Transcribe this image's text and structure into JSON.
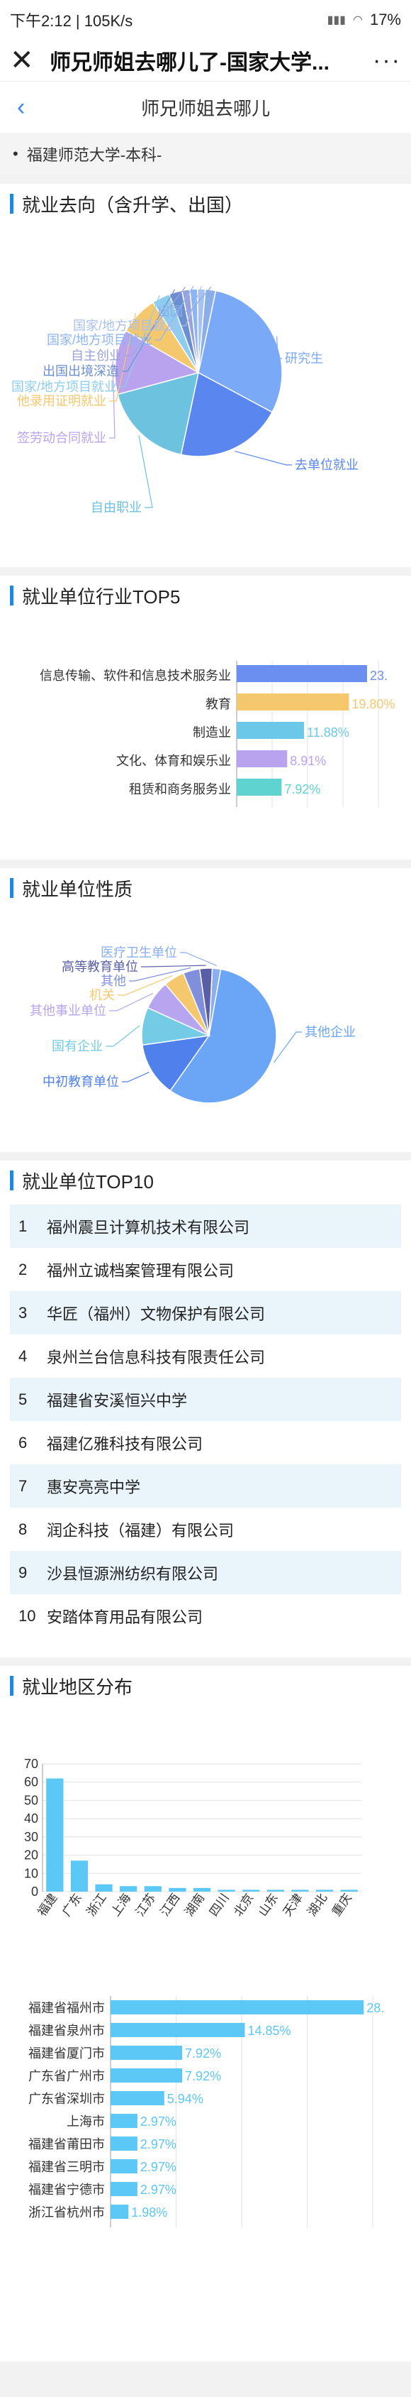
{
  "status": {
    "time_speed": "下午2:12 | 105K/s",
    "battery": "17%"
  },
  "topbar": {
    "title": "师兄师姐去哪儿了-国家大学...",
    "more": "···"
  },
  "nav": {
    "title": "师兄师姐去哪儿"
  },
  "school": {
    "name": "福建师范大学-本科-"
  },
  "sections": {
    "destination": "就业去向（含升学、出国）",
    "industry": "就业单位行业TOP5",
    "nature": "就业单位性质",
    "top10": "就业单位TOP10",
    "region": "就业地区分布"
  },
  "chart_data": [
    {
      "type": "pie",
      "id": "destination",
      "labels": [
        "研究生",
        "去单位就业",
        "自由职业",
        "签劳动合同就业",
        "他录用证明就业",
        "国家/地方项目就业",
        "出国出境深造",
        "自主创业",
        "国家/地方项目就业",
        "国家/地方项目就业",
        "出国"
      ],
      "values": [
        29.5,
        20.5,
        17.5,
        12.5,
        7.5,
        3.5,
        2.5,
        1.5,
        1.5,
        1.5,
        2.0
      ],
      "colors": [
        "#7aaaf7",
        "#5a87ef",
        "#6cc2df",
        "#b9a3ef",
        "#f6c86e",
        "#8fcdf0",
        "#6b8fd0",
        "#9aa2de",
        "#8bb6f3",
        "#a9c1ee",
        "#8aaee8"
      ]
    },
    {
      "type": "bar",
      "id": "industry",
      "orientation": "horizontal",
      "categories": [
        "信息传输、软件和信息技术服务业",
        "教育",
        "制造业",
        "文化、体育和娱乐业",
        "租赁和商务服务业"
      ],
      "values": [
        23.0,
        19.8,
        11.88,
        8.91,
        7.92
      ],
      "data_labels": [
        "23.",
        "19.80%",
        "11.88%",
        "8.91%",
        "7.92%"
      ],
      "colors": [
        "#6a8ff0",
        "#f6c86e",
        "#6cc8e8",
        "#b9a3ef",
        "#5fd3cf"
      ],
      "xlim": [
        0,
        25
      ]
    },
    {
      "type": "pie",
      "id": "nature",
      "labels": [
        "其他企业",
        "中初教育单位",
        "国有企业",
        "其他事业单位",
        "机关",
        "其他",
        "高等教育单位",
        "医疗卫生单位"
      ],
      "values": [
        57,
        13,
        9,
        7,
        5,
        4,
        3,
        2
      ],
      "colors": [
        "#6aa6f5",
        "#4f80ec",
        "#74cbe6",
        "#b7a5ef",
        "#f6c86e",
        "#7f8fdc",
        "#5a5ea6",
        "#8aaef0"
      ]
    },
    {
      "type": "bar",
      "id": "region_province",
      "categories": [
        "福建",
        "广东",
        "浙江",
        "上海",
        "江苏",
        "江西",
        "湖南",
        "四川",
        "北京",
        "山东",
        "天津",
        "湖北",
        "重庆"
      ],
      "values": [
        62,
        17,
        4,
        3,
        3,
        2,
        2,
        1,
        1,
        1,
        1,
        1,
        1
      ],
      "ylim": [
        0,
        70
      ],
      "yticks": [
        0,
        10,
        20,
        30,
        40,
        50,
        60,
        70
      ]
    },
    {
      "type": "bar",
      "id": "region_city",
      "orientation": "horizontal",
      "categories": [
        "福建省福州市",
        "福建省泉州市",
        "福建省厦门市",
        "广东省广州市",
        "广东省深圳市",
        "上海市",
        "福建省莆田市",
        "福建省三明市",
        "福建省宁德市",
        "浙江省杭州市"
      ],
      "values": [
        28.0,
        14.85,
        7.92,
        7.92,
        5.94,
        2.97,
        2.97,
        2.97,
        2.97,
        1.98
      ],
      "data_labels": [
        "28.",
        "14.85%",
        "7.92%",
        "7.92%",
        "5.94%",
        "2.97%",
        "2.97%",
        "2.97%",
        "2.97%",
        "1.98%"
      ],
      "xlim": [
        0,
        29
      ]
    }
  ],
  "top10": [
    {
      "rank": "1",
      "name": "福州震旦计算机技术有限公司"
    },
    {
      "rank": "2",
      "name": "福州立诚档案管理有限公司"
    },
    {
      "rank": "3",
      "name": "华匠（福州）文物保护有限公司"
    },
    {
      "rank": "4",
      "name": "泉州兰台信息科技有限责任公司"
    },
    {
      "rank": "5",
      "name": "福建省安溪恒兴中学"
    },
    {
      "rank": "6",
      "name": "福建亿雅科技有限公司"
    },
    {
      "rank": "7",
      "name": "惠安亮亮中学"
    },
    {
      "rank": "8",
      "name": "润企科技（福建）有限公司"
    },
    {
      "rank": "9",
      "name": "沙县恒源洲纺织有限公司"
    },
    {
      "rank": "10",
      "name": "安踏体育用品有限公司"
    }
  ]
}
